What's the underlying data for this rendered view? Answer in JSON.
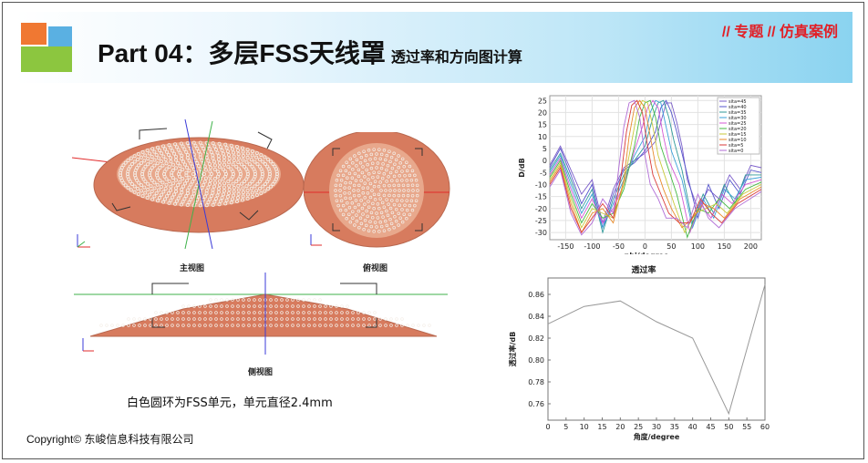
{
  "header": {
    "title": "Part 04：多层FSS天线罩",
    "subtitle": "透过率和方向图计算",
    "tag": "// 专题 // 仿真案例"
  },
  "models": {
    "front_view_label": "主视图",
    "top_view_label": "俯视图",
    "side_view_label": "侧视图",
    "caption": "白色圆环为FSS单元，单元直径2.4mm",
    "front_axis": "x y z"
  },
  "copyright": "Copyright© 东峻信息科技有限公司",
  "colors": {
    "radome": "#d77b5e",
    "radome_dark": "#b9684f",
    "fss_ring": "#f4efe9",
    "axis_red": "#e22b2b",
    "axis_green": "#3fb24a",
    "axis_blue": "#3b3bd8",
    "title_red": "#e21f26"
  },
  "chart_data": [
    {
      "type": "line",
      "title": "",
      "xlabel": "phi/degree",
      "ylabel": "D/dB",
      "xlim": [
        -180,
        220
      ],
      "ylim": [
        -33,
        27
      ],
      "xticks": [
        -150,
        -100,
        -50,
        0,
        50,
        100,
        150,
        200
      ],
      "yticks": [
        25,
        20,
        15,
        10,
        5,
        0,
        -5,
        -10,
        -15,
        -20,
        -25,
        -30
      ],
      "grid": true,
      "legend_position": "top-right",
      "series": [
        {
          "name": "sita=45",
          "color": "#7a5cc9",
          "values": [
            [
              -180,
              -2
            ],
            [
              -160,
              6
            ],
            [
              -140,
              -4
            ],
            [
              -120,
              -14
            ],
            [
              -100,
              -8
            ],
            [
              -80,
              -26
            ],
            [
              -60,
              -12
            ],
            [
              -40,
              -3
            ],
            [
              -20,
              0
            ],
            [
              0,
              3
            ],
            [
              20,
              8
            ],
            [
              30,
              16
            ],
            [
              40,
              24
            ],
            [
              50,
              24
            ],
            [
              60,
              16
            ],
            [
              70,
              6
            ],
            [
              80,
              -8
            ],
            [
              100,
              -20
            ],
            [
              120,
              -12
            ],
            [
              140,
              -16
            ],
            [
              160,
              -6
            ],
            [
              180,
              -12
            ],
            [
              200,
              -2
            ],
            [
              220,
              -3
            ]
          ]
        },
        {
          "name": "sita=40",
          "color": "#5555cc",
          "values": [
            [
              -180,
              -3
            ],
            [
              -160,
              5
            ],
            [
              -140,
              -6
            ],
            [
              -120,
              -18
            ],
            [
              -100,
              -10
            ],
            [
              -80,
              -28
            ],
            [
              -60,
              -14
            ],
            [
              -40,
              -4
            ],
            [
              -20,
              -1
            ],
            [
              0,
              4
            ],
            [
              20,
              12
            ],
            [
              30,
              22
            ],
            [
              40,
              25
            ],
            [
              50,
              20
            ],
            [
              60,
              12
            ],
            [
              80,
              -6
            ],
            [
              100,
              -24
            ],
            [
              120,
              -10
            ],
            [
              140,
              -20
            ],
            [
              160,
              -8
            ],
            [
              180,
              -14
            ],
            [
              200,
              -4
            ],
            [
              220,
              -5
            ]
          ]
        },
        {
          "name": "sita=35",
          "color": "#2f9a9a",
          "values": [
            [
              -180,
              -4
            ],
            [
              -160,
              3
            ],
            [
              -140,
              -8
            ],
            [
              -120,
              -20
            ],
            [
              -100,
              -12
            ],
            [
              -80,
              -30
            ],
            [
              -60,
              -16
            ],
            [
              -40,
              -6
            ],
            [
              -20,
              0
            ],
            [
              0,
              6
            ],
            [
              15,
              18
            ],
            [
              25,
              24
            ],
            [
              35,
              25
            ],
            [
              45,
              18
            ],
            [
              55,
              8
            ],
            [
              70,
              -4
            ],
            [
              90,
              -26
            ],
            [
              110,
              -14
            ],
            [
              130,
              -22
            ],
            [
              150,
              -10
            ],
            [
              170,
              -18
            ],
            [
              190,
              -6
            ],
            [
              220,
              -6
            ]
          ]
        },
        {
          "name": "sita=30",
          "color": "#3aa0d8",
          "values": [
            [
              -180,
              -5
            ],
            [
              -160,
              2
            ],
            [
              -140,
              -10
            ],
            [
              -120,
              -22
            ],
            [
              -100,
              -14
            ],
            [
              -80,
              -28
            ],
            [
              -60,
              -18
            ],
            [
              -40,
              -8
            ],
            [
              -20,
              2
            ],
            [
              0,
              10
            ],
            [
              10,
              20
            ],
            [
              20,
              25
            ],
            [
              30,
              24
            ],
            [
              40,
              14
            ],
            [
              50,
              4
            ],
            [
              70,
              -8
            ],
            [
              90,
              -28
            ],
            [
              110,
              -16
            ],
            [
              130,
              -24
            ],
            [
              150,
              -12
            ],
            [
              170,
              -16
            ],
            [
              190,
              -8
            ],
            [
              220,
              -7
            ]
          ]
        },
        {
          "name": "sita=25",
          "color": "#d45ad4",
          "values": [
            [
              -180,
              -6
            ],
            [
              -160,
              1
            ],
            [
              -140,
              -12
            ],
            [
              -120,
              -24
            ],
            [
              -100,
              -16
            ],
            [
              -80,
              -26
            ],
            [
              -60,
              -20
            ],
            [
              -40,
              -10
            ],
            [
              -20,
              4
            ],
            [
              -5,
              14
            ],
            [
              5,
              22
            ],
            [
              15,
              25
            ],
            [
              25,
              22
            ],
            [
              35,
              10
            ],
            [
              45,
              0
            ],
            [
              65,
              -10
            ],
            [
              85,
              -30
            ],
            [
              105,
              -18
            ],
            [
              125,
              -24
            ],
            [
              145,
              -14
            ],
            [
              165,
              -18
            ],
            [
              190,
              -10
            ],
            [
              220,
              -8
            ]
          ]
        },
        {
          "name": "sita=20",
          "color": "#44b944",
          "values": [
            [
              -180,
              -7
            ],
            [
              -160,
              0
            ],
            [
              -140,
              -14
            ],
            [
              -120,
              -26
            ],
            [
              -100,
              -18
            ],
            [
              -80,
              -24
            ],
            [
              -60,
              -22
            ],
            [
              -40,
              -12
            ],
            [
              -20,
              6
            ],
            [
              -10,
              18
            ],
            [
              0,
              24
            ],
            [
              10,
              25
            ],
            [
              20,
              18
            ],
            [
              30,
              6
            ],
            [
              45,
              -4
            ],
            [
              60,
              -14
            ],
            [
              80,
              -32
            ],
            [
              100,
              -20
            ],
            [
              120,
              -22
            ],
            [
              140,
              -16
            ],
            [
              160,
              -20
            ],
            [
              190,
              -12
            ],
            [
              220,
              -9
            ]
          ]
        },
        {
          "name": "sita=15",
          "color": "#c9c93a",
          "values": [
            [
              -180,
              -8
            ],
            [
              -160,
              -1
            ],
            [
              -140,
              -16
            ],
            [
              -120,
              -28
            ],
            [
              -100,
              -20
            ],
            [
              -80,
              -22
            ],
            [
              -60,
              -24
            ],
            [
              -40,
              -10
            ],
            [
              -25,
              8
            ],
            [
              -15,
              20
            ],
            [
              -5,
              25
            ],
            [
              5,
              24
            ],
            [
              15,
              14
            ],
            [
              25,
              2
            ],
            [
              40,
              -8
            ],
            [
              55,
              -18
            ],
            [
              75,
              -30
            ],
            [
              95,
              -22
            ],
            [
              115,
              -20
            ],
            [
              135,
              -18
            ],
            [
              155,
              -22
            ],
            [
              185,
              -14
            ],
            [
              220,
              -10
            ]
          ]
        },
        {
          "name": "sita=10",
          "color": "#e88b2a",
          "values": [
            [
              -180,
              -9
            ],
            [
              -160,
              -2
            ],
            [
              -140,
              -18
            ],
            [
              -120,
              -30
            ],
            [
              -100,
              -22
            ],
            [
              -80,
              -20
            ],
            [
              -60,
              -26
            ],
            [
              -40,
              -8
            ],
            [
              -30,
              10
            ],
            [
              -20,
              22
            ],
            [
              -10,
              25
            ],
            [
              0,
              22
            ],
            [
              10,
              10
            ],
            [
              20,
              -2
            ],
            [
              35,
              -12
            ],
            [
              50,
              -20
            ],
            [
              70,
              -28
            ],
            [
              90,
              -24
            ],
            [
              110,
              -18
            ],
            [
              130,
              -20
            ],
            [
              150,
              -24
            ],
            [
              180,
              -16
            ],
            [
              220,
              -11
            ]
          ]
        },
        {
          "name": "sita=5",
          "color": "#d93a3a",
          "values": [
            [
              -180,
              -10
            ],
            [
              -160,
              -3
            ],
            [
              -140,
              -20
            ],
            [
              -120,
              -30
            ],
            [
              -100,
              -24
            ],
            [
              -80,
              -18
            ],
            [
              -60,
              -24
            ],
            [
              -45,
              -6
            ],
            [
              -35,
              12
            ],
            [
              -25,
              23
            ],
            [
              -15,
              25
            ],
            [
              -5,
              20
            ],
            [
              5,
              6
            ],
            [
              15,
              -6
            ],
            [
              30,
              -14
            ],
            [
              45,
              -22
            ],
            [
              65,
              -26
            ],
            [
              85,
              -26
            ],
            [
              105,
              -16
            ],
            [
              125,
              -22
            ],
            [
              145,
              -26
            ],
            [
              175,
              -18
            ],
            [
              220,
              -12
            ]
          ]
        },
        {
          "name": "sita=0",
          "color": "#b06bd6",
          "values": [
            [
              -180,
              -11
            ],
            [
              -160,
              -4
            ],
            [
              -140,
              -22
            ],
            [
              -120,
              -31
            ],
            [
              -100,
              -26
            ],
            [
              -80,
              -16
            ],
            [
              -60,
              -22
            ],
            [
              -50,
              -4
            ],
            [
              -40,
              14
            ],
            [
              -30,
              24
            ],
            [
              -20,
              25
            ],
            [
              -10,
              18
            ],
            [
              0,
              2
            ],
            [
              10,
              -10
            ],
            [
              25,
              -16
            ],
            [
              40,
              -24
            ],
            [
              60,
              -24
            ],
            [
              80,
              -28
            ],
            [
              100,
              -14
            ],
            [
              120,
              -24
            ],
            [
              140,
              -28
            ],
            [
              170,
              -20
            ],
            [
              220,
              -13
            ]
          ]
        }
      ]
    },
    {
      "type": "line",
      "title": "透过率",
      "xlabel": "角度/degree",
      "ylabel": "透过率/dB",
      "xlim": [
        0,
        60
      ],
      "ylim": [
        0.745,
        0.875
      ],
      "xticks": [
        0,
        5,
        10,
        15,
        20,
        25,
        30,
        35,
        40,
        45,
        50,
        55,
        60
      ],
      "yticks": [
        0.86,
        0.84,
        0.82,
        0.8,
        0.78,
        0.76
      ],
      "grid": false,
      "series": [
        {
          "color": "#999999",
          "values": [
            [
              0,
              0.833
            ],
            [
              10,
              0.849
            ],
            [
              20,
              0.854
            ],
            [
              30,
              0.835
            ],
            [
              40,
              0.82
            ],
            [
              50,
              0.751
            ],
            [
              60,
              0.869
            ]
          ]
        }
      ]
    }
  ]
}
